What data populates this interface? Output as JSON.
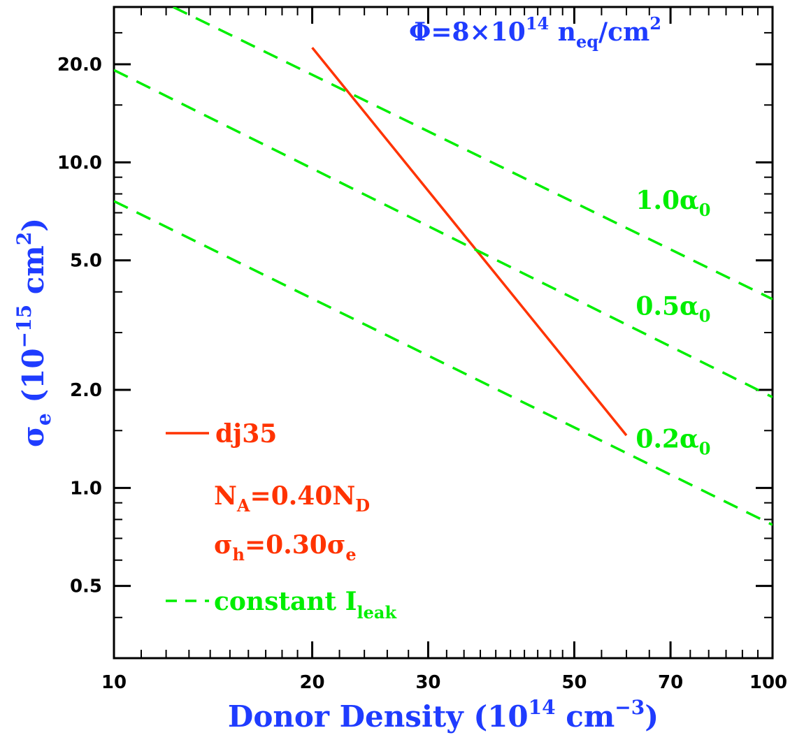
{
  "chart_data": {
    "type": "line",
    "x_scale": "log",
    "y_scale": "log",
    "xlim": [
      10,
      100
    ],
    "ylim": [
      0.3,
      30
    ],
    "grid": false,
    "x_ticks": [
      {
        "value": 10,
        "label": "10"
      },
      {
        "value": 20,
        "label": "20"
      },
      {
        "value": 30,
        "label": "30"
      },
      {
        "value": 50,
        "label": "50"
      },
      {
        "value": 70,
        "label": "70"
      },
      {
        "value": 100,
        "label": "100"
      }
    ],
    "y_ticks": [
      {
        "value": 0.5,
        "label": "0.5"
      },
      {
        "value": 1.0,
        "label": "1.0"
      },
      {
        "value": 2.0,
        "label": "2.0"
      },
      {
        "value": 5.0,
        "label": "5.0"
      },
      {
        "value": 10.0,
        "label": "10.0"
      },
      {
        "value": 20.0,
        "label": "20.0"
      }
    ],
    "xlabel": {
      "main": "Donor Density (10",
      "sup1": "14",
      "mid": " cm",
      "sup2": "−3",
      "end": ")"
    },
    "ylabel": {
      "sym": "σ",
      "sub": "e",
      "mid": " (10",
      "sup1": "−15",
      "mid2": " cm",
      "sup2": "2",
      "end": ")"
    },
    "fluence_label": {
      "main": "Φ=8×10",
      "sup": "14",
      "mid": " n",
      "sub": "eq",
      "end": "/cm",
      "sup2": "2"
    },
    "series": [
      {
        "name": "dj35",
        "style": "solid",
        "color": "#ff3300",
        "x": [
          20,
          60
        ],
        "y": [
          22.5,
          1.45
        ]
      },
      {
        "name": "1.0α0",
        "style": "dashed",
        "color": "#00ee00",
        "x": [
          12.3,
          100
        ],
        "y": [
          30,
          3.8
        ]
      },
      {
        "name": "0.5α0",
        "style": "dashed",
        "color": "#00ee00",
        "x": [
          10,
          100
        ],
        "y": [
          19.2,
          1.9
        ]
      },
      {
        "name": "0.2α0",
        "style": "dashed",
        "color": "#00ee00",
        "x": [
          10,
          100
        ],
        "y": [
          7.6,
          0.77
        ]
      }
    ],
    "line_labels": [
      {
        "main": "1.0α",
        "sub": "0",
        "x": 62,
        "y": 7.2
      },
      {
        "main": "0.5α",
        "sub": "0",
        "x": 62,
        "y": 3.4
      },
      {
        "main": "0.2α",
        "sub": "0",
        "x": 62,
        "y": 1.33
      }
    ],
    "legend": {
      "placement": "bottom-left",
      "solid_label": "dj35",
      "na_label": {
        "main": "N",
        "sub1": "A",
        "mid": "=0.40N",
        "sub2": "D"
      },
      "sigma_label": {
        "main": "σ",
        "sub1": "h",
        "mid": "=0.30σ",
        "sub2": "e"
      },
      "dashed_label": {
        "main": "constant I",
        "sub": "leak"
      }
    }
  }
}
